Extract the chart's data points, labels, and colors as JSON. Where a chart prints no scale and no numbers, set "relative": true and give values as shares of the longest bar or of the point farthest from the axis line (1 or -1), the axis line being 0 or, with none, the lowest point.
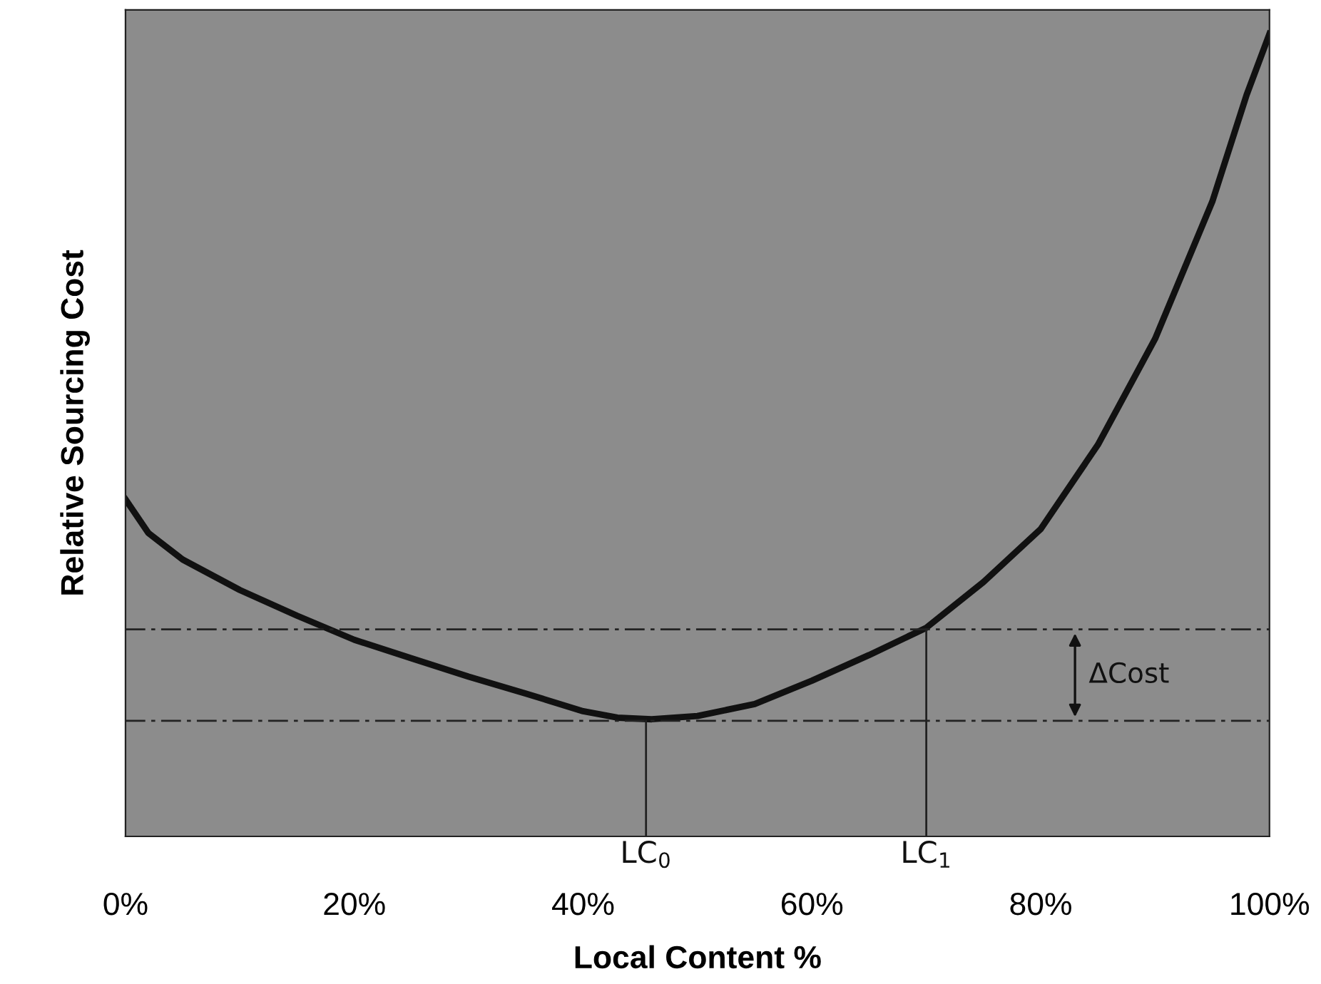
{
  "chart_data": {
    "type": "line",
    "relative": true,
    "xlabel": "Local Content %",
    "ylabel": "Relative Sourcing Cost",
    "x": [
      0,
      2,
      5,
      10,
      15,
      20,
      25,
      30,
      35,
      40,
      43,
      46,
      50,
      55,
      60,
      65,
      70,
      75,
      80,
      85,
      90,
      95,
      98,
      100
    ],
    "series": [
      {
        "color": "#111111",
        "values": [
          0.42,
          0.378,
          0.345,
          0.307,
          0.275,
          0.245,
          0.222,
          0.199,
          0.178,
          0.156,
          0.148,
          0.146,
          0.15,
          0.165,
          0.194,
          0.226,
          0.26,
          0.317,
          0.383,
          0.488,
          0.62,
          0.791,
          0.924,
          1
        ]
      }
    ],
    "xlim": [
      0,
      100
    ],
    "xticks": [
      {
        "value": 0,
        "label": "0%"
      },
      {
        "value": 20,
        "label": "20%"
      },
      {
        "value": 40,
        "label": "40%"
      },
      {
        "value": 60,
        "label": "60%"
      },
      {
        "value": 80,
        "label": "80%"
      },
      {
        "value": 100,
        "label": "100%"
      }
    ],
    "ref_lines": [
      {
        "axis": "y",
        "value": 0.258,
        "color": "#222222",
        "line_style": "dashed"
      },
      {
        "axis": "y",
        "value": 0.144,
        "color": "#222222",
        "line_style": "dashed"
      },
      {
        "axis": "x",
        "value": 45.5,
        "label": "LC$_{0}$",
        "color": "#222222",
        "line_style": "solid"
      },
      {
        "axis": "x",
        "value": 70,
        "label": "LC$_{1}$",
        "color": "#222222",
        "line_style": "solid"
      }
    ],
    "annotations": [
      "ΔCost"
    ],
    "grid": false,
    "legend": false,
    "marker": "none",
    "line_style": "solid"
  }
}
